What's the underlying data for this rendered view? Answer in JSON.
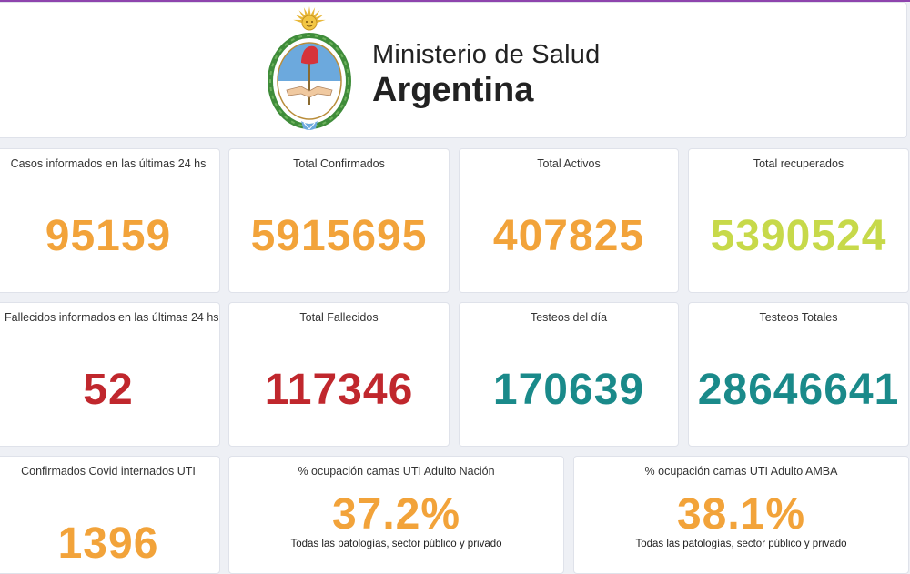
{
  "header": {
    "ministry_line1": "Ministerio de Salud",
    "ministry_line2": "Argentina",
    "logo": "escudo-nacional-argentino"
  },
  "colors": {
    "accent_top": "#8e44ad",
    "orange": "#f2a33a",
    "yellow_green": "#c7d94a",
    "red": "#c0272d",
    "teal": "#1a8a8a"
  },
  "cards": {
    "casos_24h": {
      "title": "Casos informados en las últimas 24 hs",
      "value": "95159"
    },
    "total_confirmados": {
      "title": "Total Confirmados",
      "value": "5915695"
    },
    "total_activos": {
      "title": "Total Activos",
      "value": "407825"
    },
    "total_recuperados": {
      "title": "Total recuperados",
      "value": "5390524"
    },
    "fallecidos_24h": {
      "title": "Fallecidos informados en las últimas 24 hs",
      "value": "52"
    },
    "total_fallecidos": {
      "title": "Total Fallecidos",
      "value": "117346"
    },
    "testeos_dia": {
      "title": "Testeos del día",
      "value": "170639"
    },
    "testeos_totales": {
      "title": "Testeos Totales",
      "value": "28646641"
    },
    "internados_uti": {
      "title": "Confirmados Covid internados UTI",
      "value": "1396"
    },
    "ocupacion_nacion": {
      "title": "% ocupación camas UTI Adulto Nación",
      "value": "37.2%",
      "subtitle": "Todas las patologías, sector público y privado"
    },
    "ocupacion_amba": {
      "title": "% ocupación camas UTI Adulto AMBA",
      "value": "38.1%",
      "subtitle": "Todas las patologías, sector público y privado"
    }
  }
}
